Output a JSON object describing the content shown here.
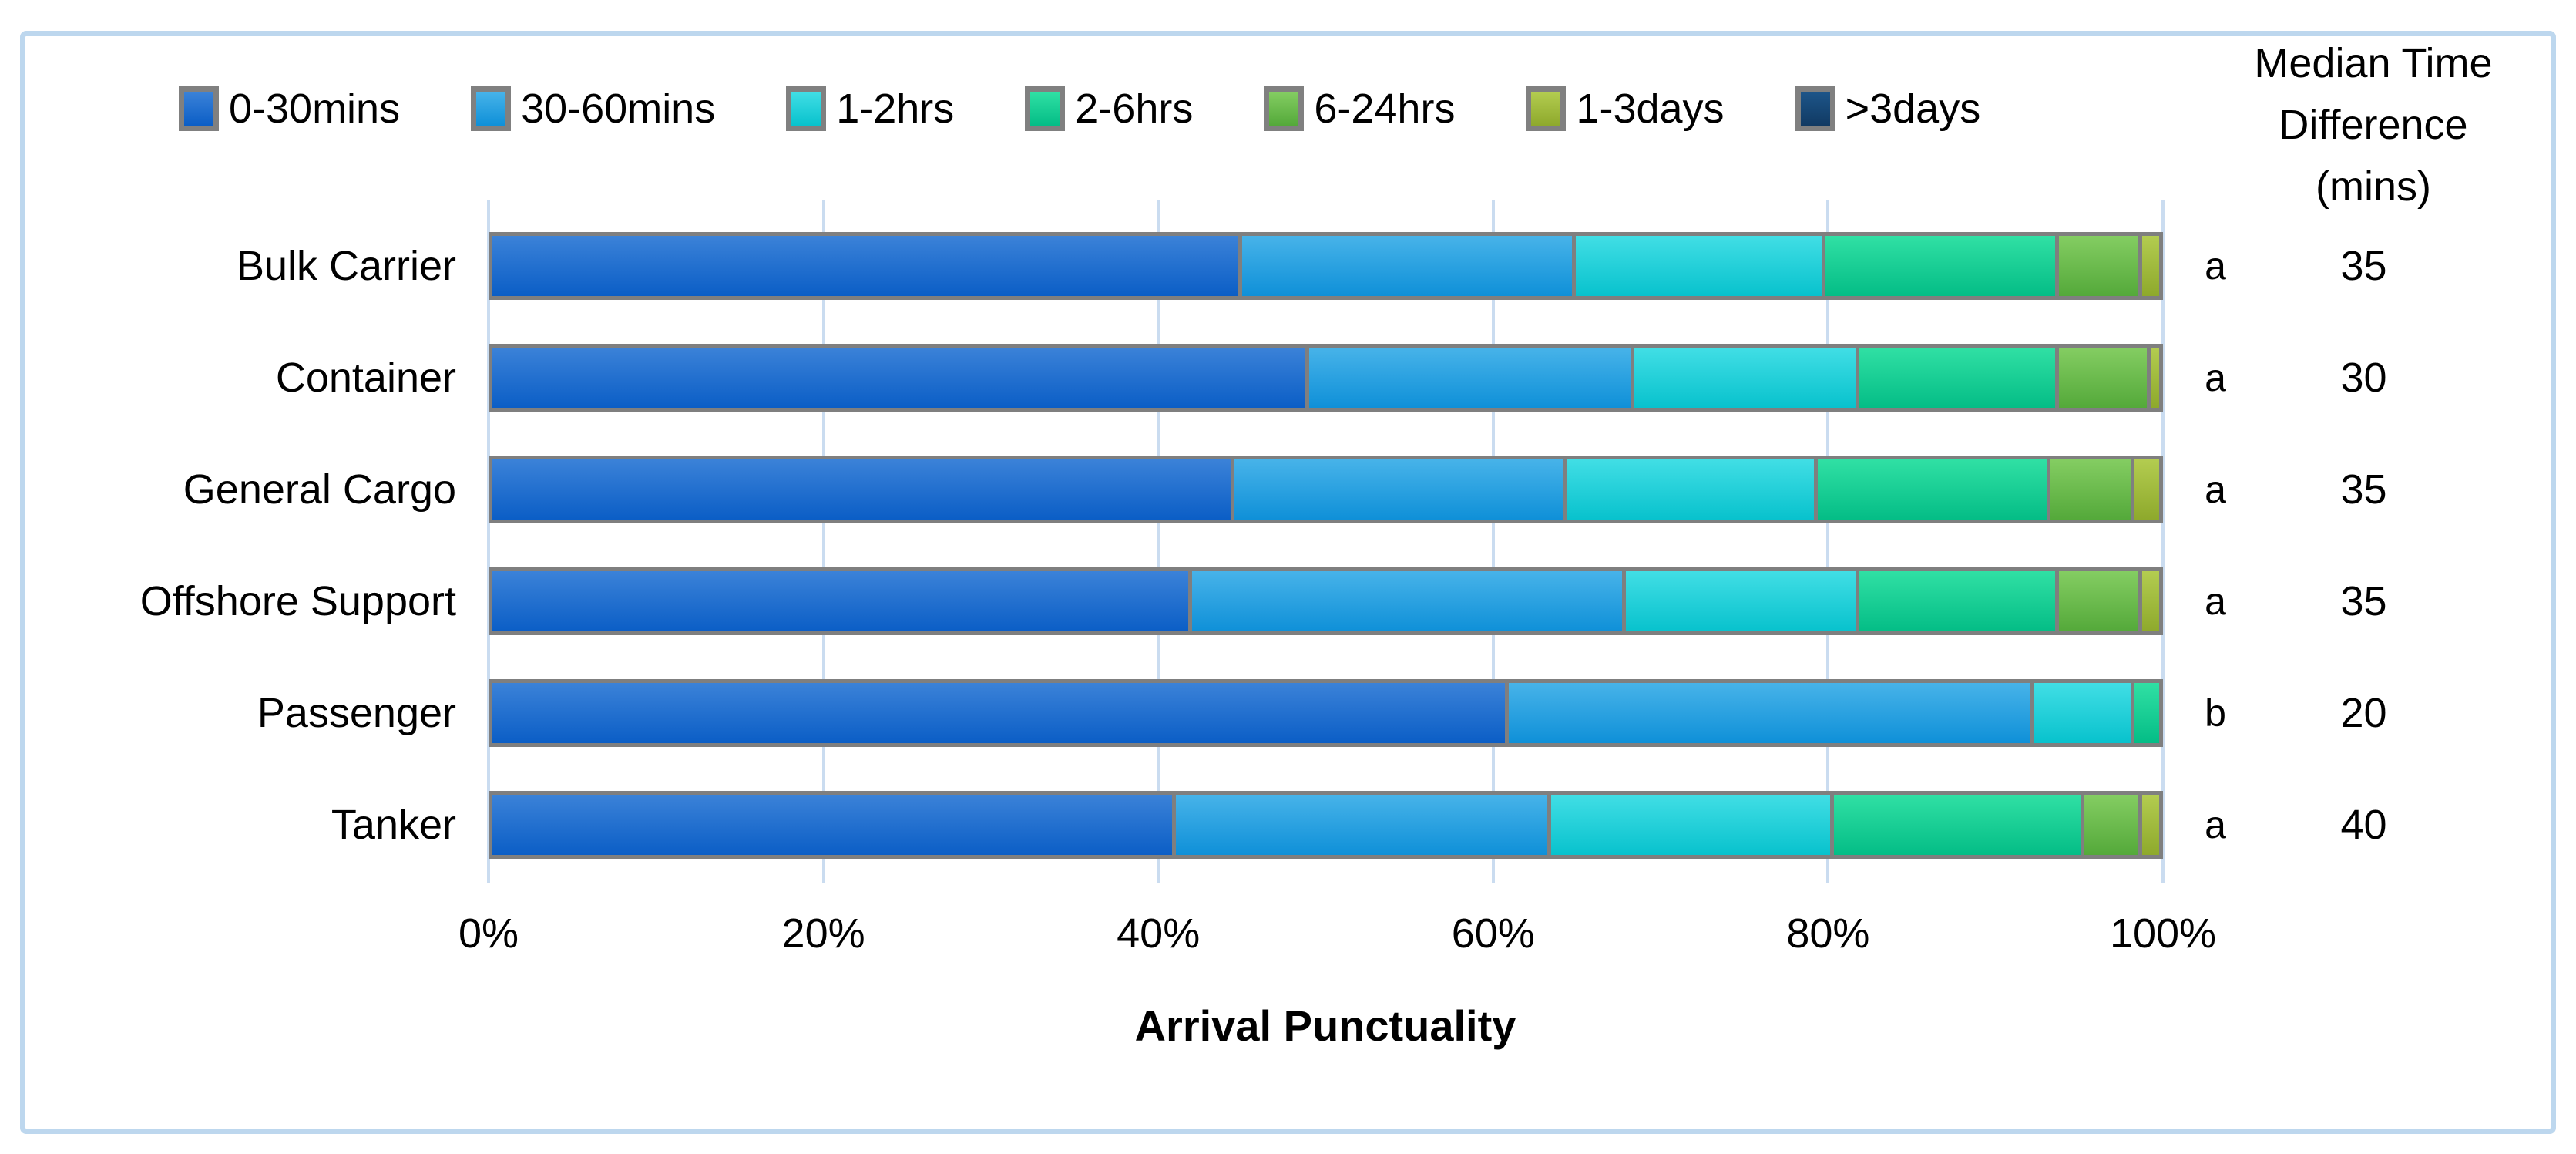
{
  "colors": {
    "frame_border": "#bdd7ee",
    "gridline": "#cadcf0",
    "segment_border": "#7f7f7f",
    "text": "#000000"
  },
  "legend": {
    "items": [
      {
        "label": "0-30mins",
        "color_top": "#3b82d8",
        "color_bottom": "#0b5ec6"
      },
      {
        "label": "30-60mins",
        "color_top": "#47b3e9",
        "color_bottom": "#0f90d8"
      },
      {
        "label": "1-2hrs",
        "color_top": "#41dee5",
        "color_bottom": "#08c2cd"
      },
      {
        "label": "2-6hrs",
        "color_top": "#30e0a4",
        "color_bottom": "#04bd86"
      },
      {
        "label": "6-24hrs",
        "color_top": "#84cd62",
        "color_bottom": "#54a93a"
      },
      {
        "label": "1-3days",
        "color_top": "#b3cc50",
        "color_bottom": "#8ea92c"
      },
      {
        "label": ">3days",
        "color_top": "#1d5589",
        "color_bottom": "#113a63"
      }
    ]
  },
  "median_header": {
    "line1": "Median Time",
    "line2": "Difference",
    "line3": "(mins)"
  },
  "rows": [
    {
      "label": "Bulk Carrier",
      "letter": "a",
      "median": "35",
      "segments": [
        45,
        20,
        15,
        14,
        5,
        1,
        0
      ]
    },
    {
      "label": "Container",
      "letter": "a",
      "median": "30",
      "segments": [
        49,
        19.5,
        13.5,
        12,
        5.5,
        0.5,
        0
      ]
    },
    {
      "label": "General Cargo",
      "letter": "a",
      "median": "35",
      "segments": [
        44.5,
        20,
        15,
        14,
        5,
        1.5,
        0
      ]
    },
    {
      "label": "Offshore Support",
      "letter": "a",
      "median": "35",
      "segments": [
        42,
        26,
        14,
        12,
        5,
        1,
        0
      ]
    },
    {
      "label": "Passenger",
      "letter": "b",
      "median": "20",
      "segments": [
        61,
        31.5,
        6,
        1.5,
        0,
        0,
        0
      ]
    },
    {
      "label": "Tanker",
      "letter": "a",
      "median": "40",
      "segments": [
        41,
        22.5,
        17,
        15,
        3.5,
        1,
        0
      ]
    }
  ],
  "x_axis": {
    "ticks": [
      "0%",
      "20%",
      "40%",
      "60%",
      "80%",
      "100%"
    ],
    "title": "Arrival Punctuality"
  },
  "chart_data": {
    "type": "bar",
    "orientation": "horizontal",
    "stacked": true,
    "title": "",
    "xlabel": "Arrival Punctuality",
    "ylabel": "",
    "xlim": [
      0,
      100
    ],
    "x_ticks": [
      "0%",
      "20%",
      "40%",
      "60%",
      "80%",
      "100%"
    ],
    "grid": true,
    "legend_position": "top",
    "categories": [
      "Bulk Carrier",
      "Container",
      "General Cargo",
      "Offshore Support",
      "Passenger",
      "Tanker"
    ],
    "series": [
      {
        "name": "0-30mins",
        "values": [
          45,
          49,
          44.5,
          42,
          61,
          41
        ]
      },
      {
        "name": "30-60mins",
        "values": [
          20,
          19.5,
          20,
          26,
          31.5,
          22.5
        ]
      },
      {
        "name": "1-2hrs",
        "values": [
          15,
          13.5,
          15,
          14,
          6,
          17
        ]
      },
      {
        "name": "2-6hrs",
        "values": [
          14,
          12,
          14,
          12,
          1.5,
          15
        ]
      },
      {
        "name": "6-24hrs",
        "values": [
          5,
          5.5,
          5,
          5,
          0,
          3.5
        ]
      },
      {
        "name": "1-3days",
        "values": [
          1,
          0.5,
          1.5,
          1,
          0,
          1
        ]
      },
      {
        "name": ">3days",
        "values": [
          0,
          0,
          0,
          0,
          0,
          0
        ]
      }
    ],
    "annotations": {
      "significance_letters": [
        "a",
        "a",
        "a",
        "a",
        "b",
        "a"
      ],
      "median_time_difference_mins": [
        35,
        30,
        35,
        35,
        20,
        40
      ],
      "right_column_header": "Median Time Difference (mins)"
    }
  }
}
